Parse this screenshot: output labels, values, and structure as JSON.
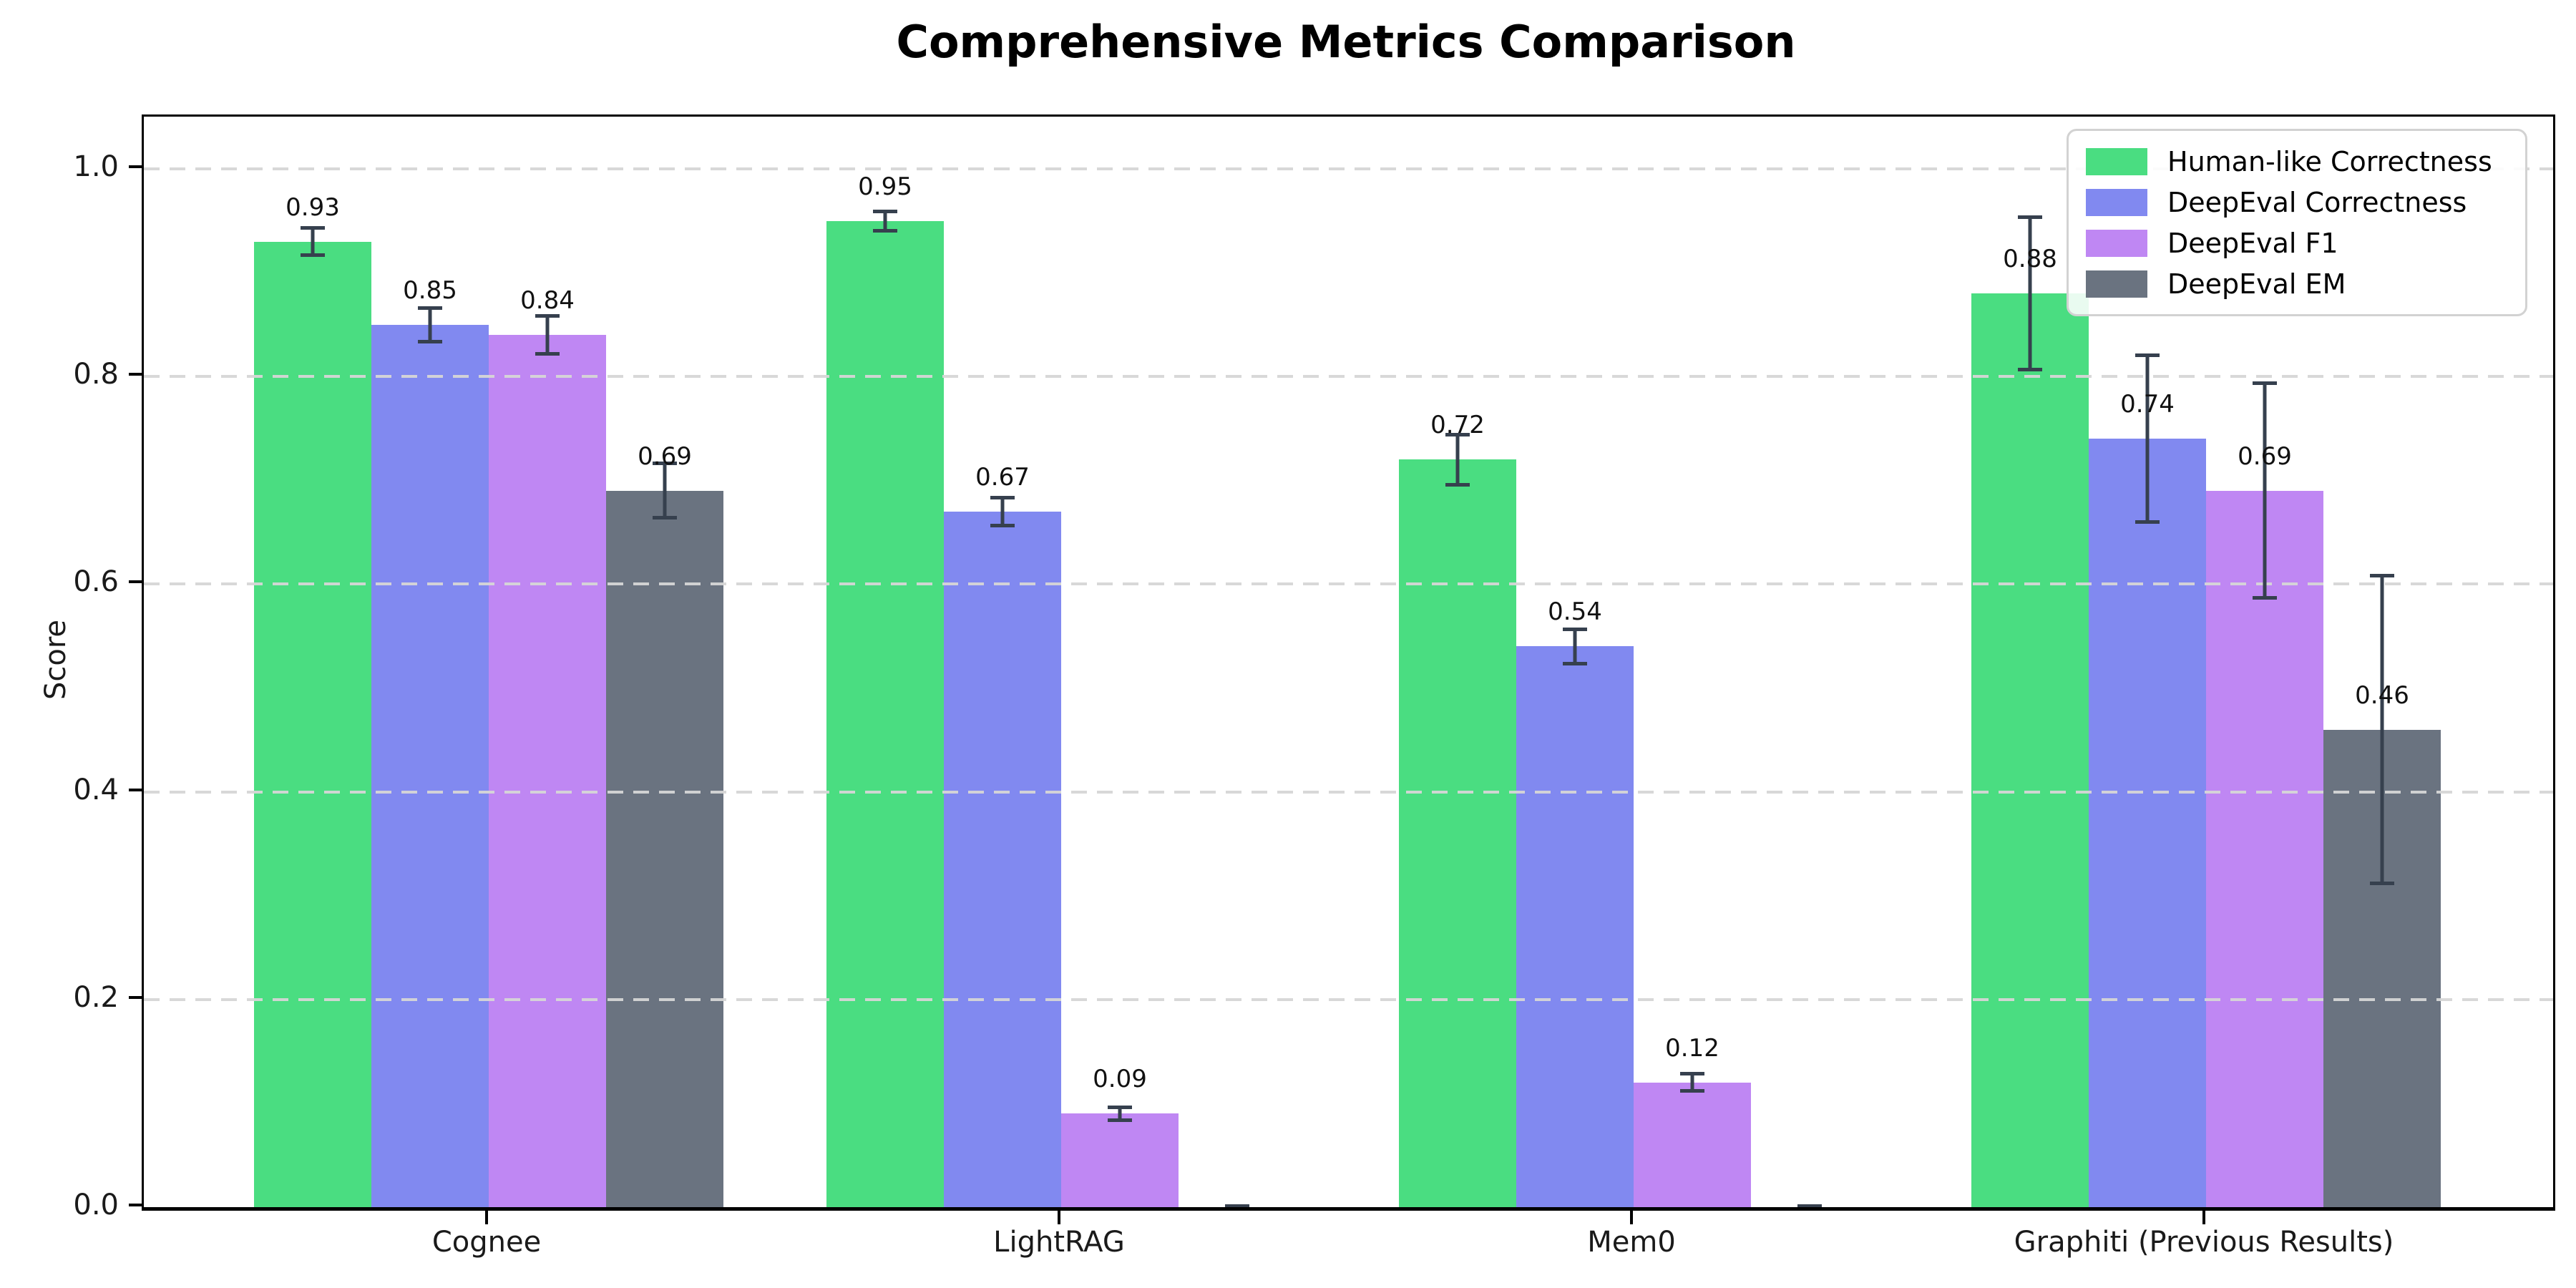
{
  "page": {
    "background": "#ffffff"
  },
  "chart_data": {
    "type": "bar",
    "title": "Comprehensive Metrics Comparison",
    "xlabel": "",
    "ylabel": "Score",
    "categories": [
      "Cognee",
      "LightRAG",
      "Mem0",
      "Graphiti (Previous Results)"
    ],
    "series": [
      {
        "name": "Human-like Correctness",
        "color": "#4add81",
        "values": [
          0.93,
          0.95,
          0.72,
          0.88
        ],
        "errors": [
          0.015,
          0.011,
          0.026,
          0.075
        ],
        "bar_labels": [
          "0.93",
          "0.95",
          "0.72",
          "0.88"
        ]
      },
      {
        "name": "DeepEval Correctness",
        "color": "#8189f0",
        "values": [
          0.85,
          0.67,
          0.54,
          0.74
        ],
        "errors": [
          0.018,
          0.015,
          0.018,
          0.082
        ],
        "bar_labels": [
          "0.85",
          "0.67",
          "0.54",
          "0.74"
        ]
      },
      {
        "name": "DeepEval F1",
        "color": "#bf87f3",
        "values": [
          0.84,
          0.09,
          0.12,
          0.69
        ],
        "errors": [
          0.02,
          0.008,
          0.01,
          0.105
        ],
        "bar_labels": [
          "0.84",
          "0.09",
          "0.12",
          "0.69"
        ]
      },
      {
        "name": "DeepEval EM",
        "color": "#6a7380",
        "values": [
          0.69,
          0.0,
          0.0,
          0.46
        ],
        "errors": [
          0.028,
          0.003,
          0.003,
          0.15
        ],
        "bar_labels": [
          "0.69",
          null,
          null,
          "0.46"
        ]
      }
    ],
    "ylim": [
      0,
      1.05
    ],
    "yticks": {
      "values": [
        0.0,
        0.2,
        0.4,
        0.6,
        0.8,
        1.0
      ],
      "labels": [
        "0.0",
        "0.2",
        "0.4",
        "0.6",
        "0.8",
        "1.0"
      ]
    },
    "grid": {
      "axis": "y",
      "style": "dashed",
      "color": "#d6d6d6",
      "on_top_of_bars": true
    },
    "legend": {
      "position": "upper right"
    },
    "error_bar_color": "#36404e",
    "bar_label_color": "#111111",
    "axis_color": "#000000"
  }
}
